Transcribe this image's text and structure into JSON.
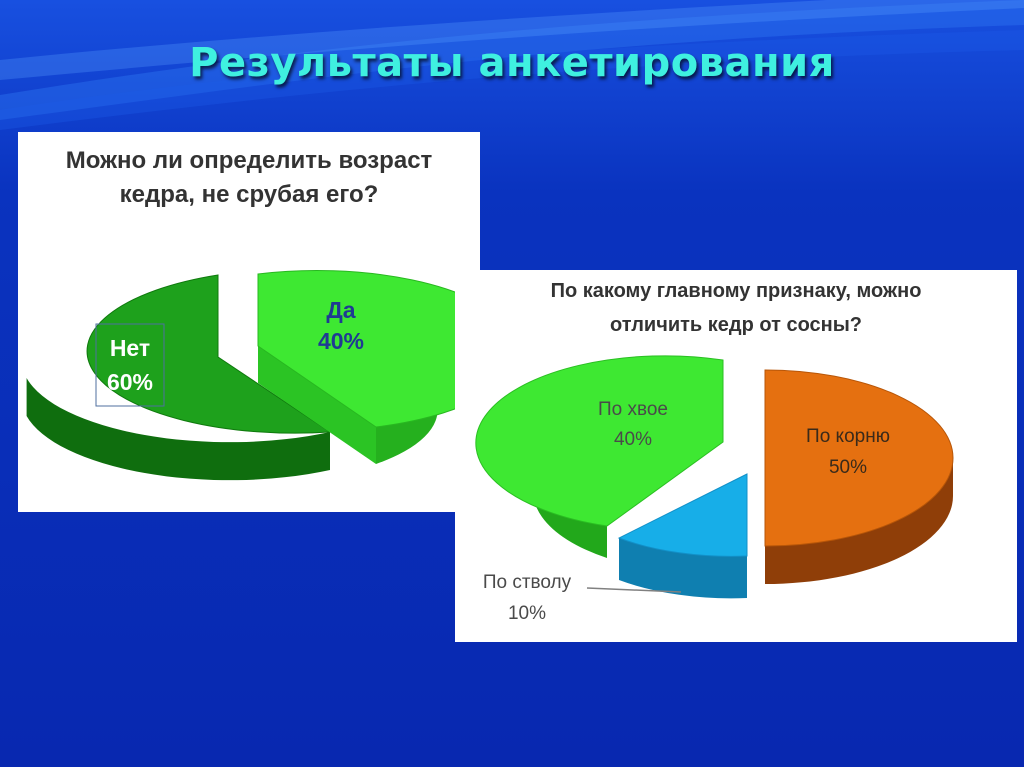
{
  "slide_title": "Результаты анкетирования",
  "chart_data": [
    {
      "type": "pie",
      "title_lines": [
        "Можно ли определить возраст",
        "кедра, не срубая его?"
      ],
      "categories": [
        "Да",
        "Нет"
      ],
      "values": [
        40,
        60
      ],
      "value_labels": [
        "40%",
        "60%"
      ],
      "colors": [
        "#3ee832",
        "#1ea11c"
      ]
    },
    {
      "type": "pie",
      "title_lines": [
        "По какому главному  признаку,  можно",
        "отличить кедр от сосны?"
      ],
      "categories": [
        "По корню",
        "По стволу",
        "По хвое"
      ],
      "values": [
        50,
        10,
        40
      ],
      "value_labels": [
        "50%",
        "10%",
        "40%"
      ],
      "colors": [
        "#e57010",
        "#17aee8",
        "#3ee832"
      ]
    }
  ],
  "colors": {
    "background": "#0a2fb8",
    "title": "#3ff0e0"
  }
}
